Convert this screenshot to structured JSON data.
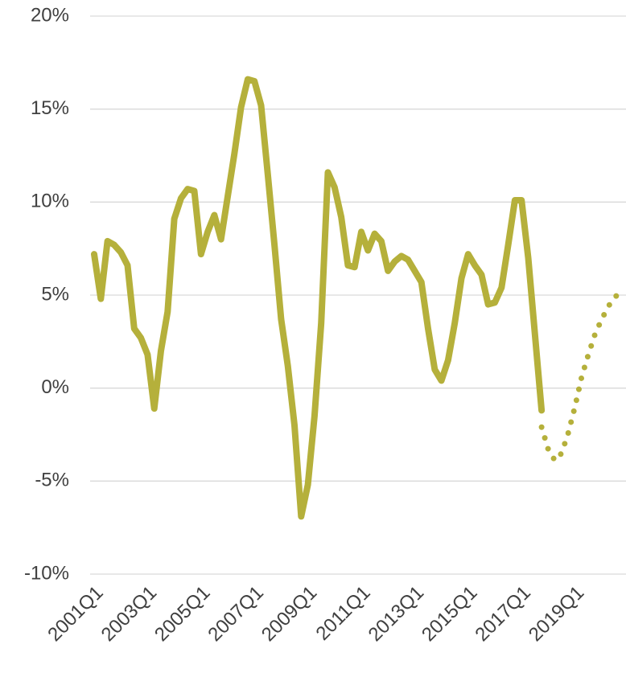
{
  "chart_data": {
    "type": "line",
    "categories": [
      "2001Q1",
      null,
      null,
      null,
      null,
      null,
      null,
      null,
      "2003Q1",
      null,
      null,
      null,
      null,
      null,
      null,
      null,
      "2005Q1",
      null,
      null,
      null,
      null,
      null,
      null,
      null,
      "2007Q1",
      null,
      null,
      null,
      null,
      null,
      null,
      null,
      "2009Q1",
      null,
      null,
      null,
      null,
      null,
      null,
      null,
      "2011Q1",
      null,
      null,
      null,
      null,
      null,
      null,
      null,
      "2013Q1",
      null,
      null,
      null,
      null,
      null,
      null,
      null,
      "2015Q1",
      null,
      null,
      null,
      null,
      null,
      null,
      null,
      "2017Q1",
      null,
      null,
      null,
      null,
      null,
      null,
      null,
      "2019Q1",
      null,
      null,
      null,
      null,
      null,
      null,
      null
    ],
    "series": [
      {
        "color": "#b5b03b",
        "style": "solid",
        "values": [
          7.2,
          4.8,
          7.9,
          7.7,
          7.3,
          6.6,
          3.2,
          2.7,
          1.8,
          -1.1,
          2.0,
          4.1,
          9.1,
          10.2,
          10.7,
          10.6,
          7.2,
          8.4,
          9.3,
          8.0,
          10.3,
          12.6,
          15.1,
          16.6,
          16.5,
          15.2,
          11.5,
          7.7,
          3.7,
          1.2,
          -2.0,
          -6.9,
          -5.2,
          -1.5,
          3.5,
          11.6,
          10.8,
          9.2,
          6.6,
          6.5,
          8.4,
          7.4,
          8.3,
          7.9,
          6.3,
          6.8,
          7.1,
          6.9,
          6.3,
          5.7,
          3.2,
          1.0,
          0.4,
          1.5,
          3.5,
          5.9,
          7.2,
          6.6,
          6.1,
          4.5,
          4.6,
          5.4,
          7.7,
          10.1,
          10.1,
          7.0,
          2.9,
          -1.2,
          null,
          null,
          null,
          null,
          null,
          null,
          null,
          null,
          null,
          null,
          null,
          null
        ]
      },
      {
        "color": "#b5b03b",
        "style": "dotted",
        "values": [
          null,
          null,
          null,
          null,
          null,
          null,
          null,
          null,
          null,
          null,
          null,
          null,
          null,
          null,
          null,
          null,
          null,
          null,
          null,
          null,
          null,
          null,
          null,
          null,
          null,
          null,
          null,
          null,
          null,
          null,
          null,
          null,
          null,
          null,
          null,
          null,
          null,
          null,
          null,
          null,
          null,
          null,
          null,
          null,
          null,
          null,
          null,
          null,
          null,
          null,
          null,
          null,
          null,
          null,
          null,
          null,
          null,
          null,
          null,
          null,
          null,
          null,
          null,
          null,
          null,
          null,
          null,
          -2.1,
          -3.3,
          -3.9,
          -3.5,
          -2.4,
          -1.0,
          0.6,
          1.8,
          2.9,
          3.7,
          4.4,
          4.9,
          5.2
        ]
      }
    ],
    "ylim": [
      -10,
      20
    ],
    "yticks": [
      {
        "value": -10,
        "label": "-10%"
      },
      {
        "value": -5,
        "label": "-5%"
      },
      {
        "value": 0,
        "label": "0%"
      },
      {
        "value": 5,
        "label": "5%"
      },
      {
        "value": 10,
        "label": "10%"
      },
      {
        "value": 15,
        "label": "15%"
      },
      {
        "value": 20,
        "label": "20%"
      }
    ],
    "grid": true
  }
}
